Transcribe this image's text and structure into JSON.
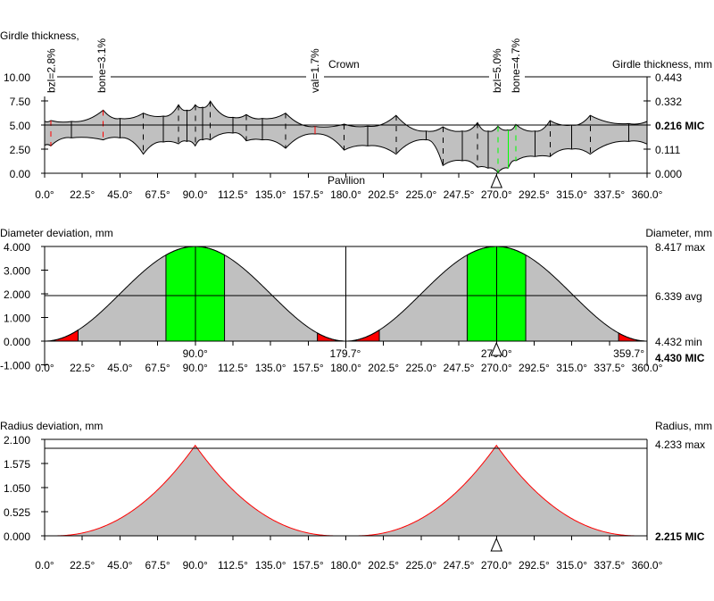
{
  "colors": {
    "fill": "#c0c0c0",
    "green": "#00ff00",
    "red": "#ff0000",
    "line": "#000000"
  },
  "x_ticks": [
    "0.0°",
    "22.5°",
    "45.0°",
    "67.5°",
    "90.0°",
    "112.5°",
    "135.0°",
    "157.5°",
    "180.0°",
    "202.5°",
    "225.0°",
    "247.5°",
    "270.0°",
    "292.5°",
    "315.0°",
    "337.5°",
    "360.0°"
  ],
  "chart_data": [
    {
      "type": "area",
      "title_left": "Girdle thickness,",
      "title_right": "Girdle thickness, mm",
      "crown_label": "Crown",
      "pavilion_label": "Pavilion",
      "xlim": [
        0,
        360
      ],
      "ylim": [
        0,
        10
      ],
      "left_ticks": [
        "10.00",
        "7.50",
        "5.00",
        "2.50",
        "0.00"
      ],
      "left_tick_values": [
        10,
        7.5,
        5,
        2.5,
        0
      ],
      "right_ticks": [
        "0.443",
        "0.332",
        "0.216 MIC",
        "0.111",
        "0.000"
      ],
      "marker_angle": 270,
      "annotations": [
        {
          "text": "bzl=2.8%",
          "angle": 4
        },
        {
          "text": "bone=3.1%",
          "angle": 34
        },
        {
          "text": "val=1.7%",
          "angle": 161.5
        },
        {
          "text": "bzl=5.0%",
          "angle": 270.5
        },
        {
          "text": "bone=4.7%",
          "angle": 281.5
        }
      ],
      "profile": [
        {
          "a": 0,
          "top": 5.4,
          "bot": 2.9,
          "s": "none"
        },
        {
          "a": 3.7,
          "top": 5.46,
          "bot": 2.84,
          "s": "red-dash"
        },
        {
          "a": 16,
          "top": 5.37,
          "bot": 3.67,
          "s": "solid"
        },
        {
          "a": 35,
          "top": 6.54,
          "bot": 3.46,
          "s": "red-dash"
        },
        {
          "a": 45,
          "top": 5.68,
          "bot": 3.67,
          "s": "solid"
        },
        {
          "a": 59,
          "top": 6.23,
          "bot": 1.98,
          "s": "dash"
        },
        {
          "a": 71,
          "top": 5.93,
          "bot": 3.24,
          "s": "solid"
        },
        {
          "a": 80,
          "top": 7.1,
          "bot": 3.05,
          "s": "dash"
        },
        {
          "a": 85,
          "top": 6.54,
          "bot": 3.3,
          "s": "solid"
        },
        {
          "a": 90,
          "top": 7.1,
          "bot": 2.84,
          "s": "dash"
        },
        {
          "a": 94.4,
          "top": 6.85,
          "bot": 3.46,
          "s": "solid"
        },
        {
          "a": 99,
          "top": 7.47,
          "bot": 3.46,
          "s": "dash"
        },
        {
          "a": 112.5,
          "top": 5.8,
          "bot": 4.17,
          "s": "solid"
        },
        {
          "a": 120.5,
          "top": 6.08,
          "bot": 3.36,
          "s": "dash"
        },
        {
          "a": 130,
          "top": 5.68,
          "bot": 3.46,
          "s": "solid"
        },
        {
          "a": 144,
          "top": 6.23,
          "bot": 2.59,
          "s": "dash"
        },
        {
          "a": 161.6,
          "top": 4.85,
          "bot": 4.07,
          "s": "red"
        },
        {
          "a": 179,
          "top": 5.09,
          "bot": 2.4,
          "s": "dash"
        },
        {
          "a": 193,
          "top": 4.88,
          "bot": 2.84,
          "s": "solid"
        },
        {
          "a": 210,
          "top": 6.0,
          "bot": 1.98,
          "s": "dash"
        },
        {
          "a": 228,
          "top": 4.38,
          "bot": 3.46,
          "s": "solid"
        },
        {
          "a": 238,
          "top": 4.81,
          "bot": 0.8,
          "s": "dash"
        },
        {
          "a": 249.6,
          "top": 4.38,
          "bot": 1.3,
          "s": "solid"
        },
        {
          "a": 258.7,
          "top": 5.25,
          "bot": 0.62,
          "s": "dash"
        },
        {
          "a": 265,
          "top": 4.38,
          "bot": 0.53,
          "s": "solid"
        },
        {
          "a": 270.9,
          "top": 4.88,
          "bot": 0.06,
          "s": "green-dash"
        },
        {
          "a": 277,
          "top": 4.5,
          "bot": 0.53,
          "s": "green"
        },
        {
          "a": 281.6,
          "top": 5.06,
          "bot": 1.3,
          "s": "green-dash"
        },
        {
          "a": 293,
          "top": 4.38,
          "bot": 1.73,
          "s": "solid"
        },
        {
          "a": 302,
          "top": 5.46,
          "bot": 1.73,
          "s": "dash"
        },
        {
          "a": 315,
          "top": 5.0,
          "bot": 2.5,
          "s": "solid"
        },
        {
          "a": 326,
          "top": 6.0,
          "bot": 1.98,
          "s": "dash"
        },
        {
          "a": 349,
          "top": 5.15,
          "bot": 3.3,
          "s": "solid"
        },
        {
          "a": 360,
          "top": 5.37,
          "bot": 3.03,
          "s": "none"
        }
      ]
    },
    {
      "type": "area",
      "title_left": "Diameter deviation, mm",
      "title_right": "Diameter, mm",
      "xlim": [
        0,
        360
      ],
      "ylim": [
        -1,
        4
      ],
      "left_ticks": [
        "4.000",
        "3.000",
        "2.000",
        "1.000",
        "0.000",
        "-1.000"
      ],
      "left_tick_values": [
        4,
        3,
        2,
        1,
        0,
        -1
      ],
      "right_ticks": [
        "8.417 max",
        "6.339 avg",
        "4.432 min",
        "4.430 MIC"
      ],
      "avg_deviation": 1.93,
      "peak_deviation": 4.0,
      "green_ranges": [
        [
          72.5,
          107.5
        ],
        [
          252.5,
          287.5
        ]
      ],
      "red_ranges": [
        [
          4,
          20
        ],
        [
          163,
          178
        ],
        [
          184,
          200
        ],
        [
          343,
          358
        ]
      ],
      "marker_angle": 270,
      "angle_labels": [
        {
          "text": "90.0°",
          "angle": 90,
          "color": "green"
        },
        {
          "text": "179.7°",
          "angle": 179.7,
          "color": "red"
        },
        {
          "text": "270.0°",
          "angle": 270,
          "color": "green"
        },
        {
          "text": "359.7°",
          "angle": 359.7,
          "color": "red"
        }
      ]
    },
    {
      "type": "area",
      "title_left": "Radius deviation, mm",
      "title_right": "Radius, mm",
      "xlim": [
        0,
        360
      ],
      "ylim": [
        0,
        2.1
      ],
      "left_ticks": [
        "2.100",
        "1.575",
        "1.050",
        "0.525",
        "0.000"
      ],
      "left_tick_values": [
        2.1,
        1.575,
        1.05,
        0.525,
        0
      ],
      "right_ticks": [
        "4.233 max",
        "2.215 MIC"
      ],
      "max_deviation": 2.0,
      "peak_deviation": 1.97,
      "peaks": [
        90,
        270
      ],
      "marker_angle": 270
    }
  ]
}
